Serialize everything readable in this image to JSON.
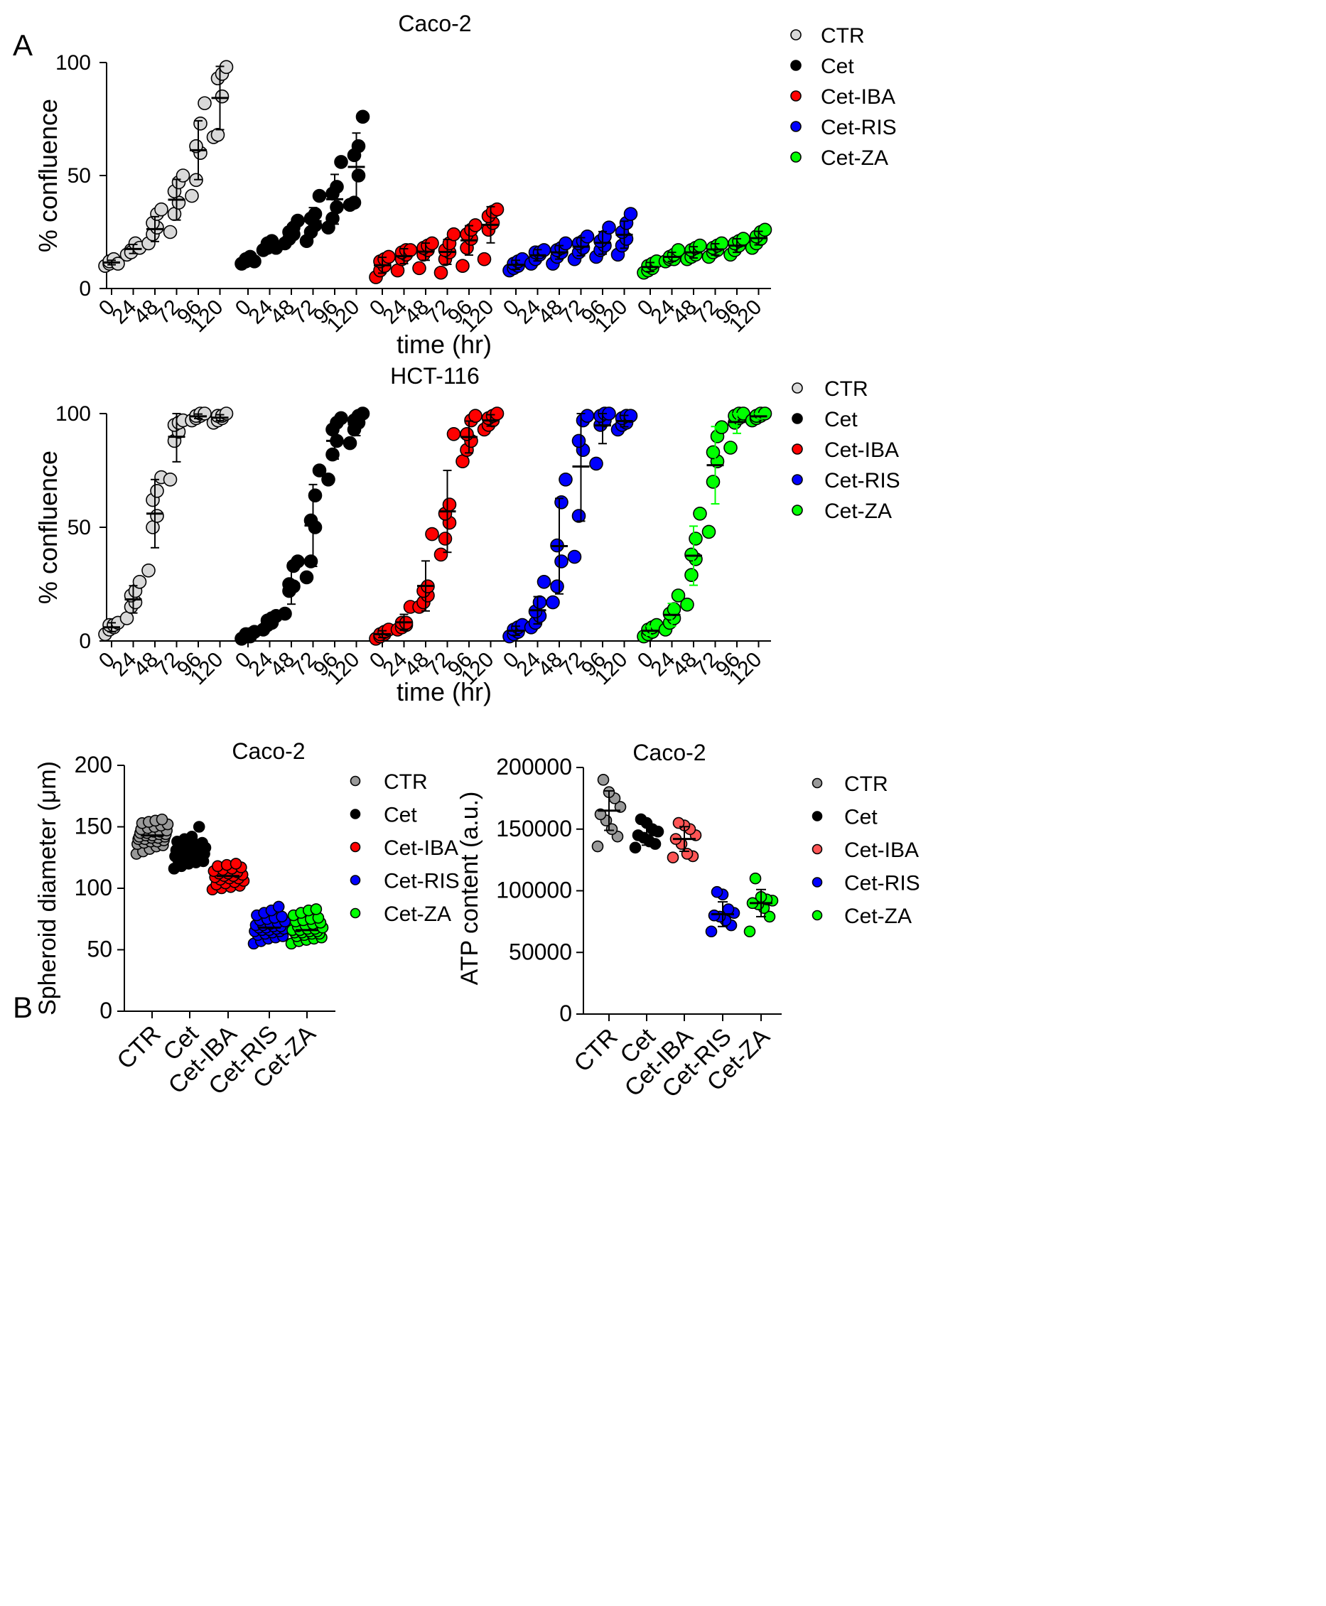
{
  "panel_labels": {
    "a": "A",
    "b": "B"
  },
  "legend": [
    {
      "name": "CTR",
      "color": "#d9d9d9"
    },
    {
      "name": "Cet",
      "color": "#000000"
    },
    {
      "name": "Cet-IBA",
      "color": "#ff0000"
    },
    {
      "name": "Cet-RIS",
      "color": "#0000ff"
    },
    {
      "name": "Cet-ZA",
      "color": "#00ff00"
    }
  ],
  "chart_data": [
    {
      "type": "scatter",
      "title": "Caco-2",
      "xlabel": "time (hr)",
      "ylabel": "% confluence",
      "ylim": [
        0,
        100
      ],
      "yticks": [
        0,
        50,
        100
      ],
      "categories": [
        "0",
        "24",
        "48",
        "72",
        "96",
        "120"
      ],
      "series": [
        {
          "name": "CTR",
          "color": "#d9d9d9",
          "points": [
            [
              10,
              11,
              12,
              12,
              13,
              11
            ],
            [
              15,
              17,
              19,
              16,
              20,
              18
            ],
            [
              20,
              24,
              27,
              29,
              33,
              35
            ],
            [
              25,
              33,
              38,
              43,
              47,
              50
            ],
            [
              41,
              48,
              60,
              63,
              73,
              82
            ],
            [
              67,
              68,
              85,
              93,
              95,
              98
            ]
          ],
          "means": [
            11.5,
            17.5,
            26.3,
            39.3,
            61.2,
            84.3
          ],
          "sd": [
            1,
            2,
            5.5,
            9,
            13,
            14
          ]
        },
        {
          "name": "Cet",
          "color": "#000000",
          "points": [
            [
              11,
              12,
              13,
              13,
              14,
              12
            ],
            [
              17,
              18,
              19,
              20,
              21,
              18
            ],
            [
              20,
              22,
              24,
              25,
              27,
              30
            ],
            [
              21,
              25,
              28,
              31,
              33,
              41
            ],
            [
              27,
              31,
              36,
              42,
              45,
              56
            ],
            [
              37,
              38,
              50,
              59,
              63,
              76
            ]
          ],
          "means": [
            12.5,
            18.8,
            24.7,
            29.8,
            39.5,
            53.8
          ],
          "sd": [
            1,
            1.5,
            3.5,
            6,
            11,
            15
          ]
        },
        {
          "name": "Cet-IBA",
          "color": "#ff0000",
          "points": [
            [
              5,
              8,
              10,
              12,
              13,
              14
            ],
            [
              8,
              13,
              15,
              16,
              17,
              17
            ],
            [
              9,
              15,
              17,
              18,
              19,
              20
            ],
            [
              7,
              13,
              16,
              17,
              20,
              24
            ],
            [
              10,
              18,
              22,
              24,
              26,
              28
            ],
            [
              13,
              26,
              29,
              32,
              34,
              35
            ]
          ],
          "means": [
            10.3,
            14.3,
            16.3,
            16.2,
            21.3,
            28.2
          ],
          "sd": [
            3.5,
            3.3,
            3.8,
            5.5,
            6.5,
            8
          ]
        },
        {
          "name": "Cet-RIS",
          "color": "#0000ff",
          "points": [
            [
              8,
              9,
              10,
              11,
              12,
              13
            ],
            [
              11,
              13,
              15,
              16,
              16,
              17
            ],
            [
              11,
              14,
              16,
              17,
              18,
              20
            ],
            [
              13,
              16,
              18,
              20,
              21,
              23
            ],
            [
              14,
              17,
              19,
              21,
              23,
              27
            ],
            [
              15,
              19,
              22,
              25,
              29,
              33
            ]
          ],
          "means": [
            10.5,
            14.7,
            16,
            18.5,
            20.2,
            23.8
          ],
          "sd": [
            2,
            2.5,
            3,
            4,
            5,
            6
          ]
        },
        {
          "name": "Cet-ZA",
          "color": "#00ff00",
          "points": [
            [
              7,
              8,
              9,
              10,
              11,
              12
            ],
            [
              12,
              13,
              13,
              14,
              15,
              17
            ],
            [
              13,
              14,
              15,
              17,
              18,
              19
            ],
            [
              14,
              16,
              17,
              18,
              19,
              20
            ],
            [
              15,
              17,
              19,
              20,
              21,
              22
            ],
            [
              18,
              20,
              22,
              23,
              25,
              26
            ]
          ],
          "means": [
            9.5,
            14,
            16,
            17.3,
            19,
            22.3
          ],
          "sd": [
            2,
            2,
            2.5,
            2.5,
            3,
            3
          ]
        }
      ]
    },
    {
      "type": "scatter",
      "title": "HCT-116",
      "xlabel": "time (hr)",
      "ylabel": "% confluence",
      "ylim": [
        0,
        100
      ],
      "yticks": [
        0,
        50,
        100
      ],
      "categories": [
        "0",
        "24",
        "48",
        "72",
        "96",
        "120"
      ],
      "series": [
        {
          "name": "CTR",
          "color": "#d9d9d9",
          "points": [
            [
              3,
              5,
              6,
              7,
              7,
              8
            ],
            [
              10,
              15,
              17,
              20,
              22,
              26
            ],
            [
              31,
              50,
              55,
              62,
              66,
              72
            ],
            [
              71,
              88,
              92,
              95,
              96,
              97
            ],
            [
              97,
              98,
              99,
              99,
              100,
              100
            ],
            [
              96,
              97,
              98,
              99,
              99,
              100
            ]
          ],
          "means": [
            6,
            18.3,
            56,
            89.8,
            98.8,
            98.2
          ],
          "sd": [
            2,
            6,
            15,
            11,
            1,
            1.3
          ]
        },
        {
          "name": "Cet",
          "color": "#000000",
          "points": [
            [
              1,
              2,
              2,
              3,
              3,
              4
            ],
            [
              5,
              7,
              8,
              9,
              10,
              11
            ],
            [
              12,
              22,
              24,
              25,
              33,
              35
            ],
            [
              28,
              35,
              50,
              53,
              64,
              75
            ],
            [
              71,
              82,
              88,
              93,
              96,
              98
            ],
            [
              87,
              93,
              96,
              97,
              99,
              100
            ]
          ],
          "means": [
            2.5,
            8.3,
            25.2,
            50.8,
            88,
            95.3
          ],
          "sd": [
            1,
            2,
            9,
            18,
            8,
            5
          ]
        },
        {
          "name": "Cet-IBA",
          "color": "#ff0000",
          "points": [
            [
              1,
              2,
              3,
              3,
              4,
              5
            ],
            [
              5,
              6,
              7,
              8,
              8,
              15
            ],
            [
              15,
              17,
              20,
              22,
              24,
              47
            ],
            [
              38,
              45,
              52,
              56,
              60,
              91
            ],
            [
              79,
              84,
              88,
              91,
              97,
              99
            ],
            [
              93,
              95,
              97,
              98,
              99,
              100
            ]
          ],
          "means": [
            3,
            8.2,
            24.2,
            57,
            89.7,
            97
          ],
          "sd": [
            1.5,
            3.5,
            11,
            18,
            7,
            2.5
          ]
        },
        {
          "name": "Cet-RIS",
          "color": "#0000ff",
          "points": [
            [
              2,
              3,
              4,
              5,
              6,
              7
            ],
            [
              6,
              8,
              11,
              13,
              17,
              26
            ],
            [
              17,
              24,
              35,
              42,
              61,
              71
            ],
            [
              37,
              55,
              84,
              88,
              97,
              99
            ],
            [
              78,
              95,
              97,
              99,
              100,
              100
            ],
            [
              93,
              95,
              96,
              98,
              99,
              99
            ]
          ],
          "means": [
            4.5,
            13.5,
            41.7,
            76.7,
            94.8,
            96.7
          ],
          "sd": [
            2,
            6,
            21,
            24,
            8,
            2.5
          ]
        },
        {
          "name": "Cet-ZA",
          "color": "#00ff00",
          "points": [
            [
              2,
              3,
              4,
              5,
              6,
              7
            ],
            [
              5,
              8,
              10,
              12,
              14,
              20
            ],
            [
              16,
              29,
              36,
              38,
              45,
              56
            ],
            [
              48,
              70,
              79,
              83,
              90,
              94
            ],
            [
              85,
              96,
              98,
              99,
              100,
              100
            ],
            [
              97,
              98,
              99,
              99,
              100,
              100
            ]
          ],
          "means": [
            4.5,
            11.5,
            37.5,
            77.3,
            96.3,
            98.8
          ],
          "sd": [
            2,
            5,
            13,
            17,
            5,
            1.2
          ]
        }
      ]
    },
    {
      "type": "scatter",
      "title": "Caco-2",
      "xlabel": "",
      "ylabel": "Spheroid diameter (μm)",
      "ylim": [
        0,
        200
      ],
      "yticks": [
        0,
        50,
        100,
        150,
        200
      ],
      "categories": [
        "CTR",
        "Cet",
        "Cet-IBA",
        "Cet-RIS",
        "Cet-ZA"
      ],
      "series": [
        {
          "name": "CTR",
          "color": "#999999",
          "points": [
            128,
            130,
            132,
            134,
            135,
            136,
            137,
            138,
            138,
            139,
            140,
            140,
            141,
            141,
            142,
            142,
            143,
            143,
            144,
            144,
            145,
            145,
            146,
            146,
            147,
            148,
            149,
            150,
            151,
            152,
            153,
            154,
            155,
            156
          ],
          "mean": 143
        },
        {
          "name": "Cet",
          "color": "#000000",
          "points": [
            116,
            118,
            120,
            121,
            122,
            123,
            124,
            125,
            125,
            126,
            127,
            127,
            128,
            128,
            129,
            129,
            130,
            130,
            131,
            131,
            132,
            132,
            133,
            134,
            135,
            136,
            137,
            138,
            140,
            142,
            150
          ],
          "mean": 129
        },
        {
          "name": "Cet-IBA",
          "color": "#ff0000",
          "points": [
            99,
            100,
            101,
            102,
            103,
            104,
            105,
            106,
            107,
            108,
            108,
            109,
            110,
            110,
            111,
            112,
            112,
            113,
            114,
            115,
            116,
            117,
            118,
            119,
            120
          ],
          "mean": 110
        },
        {
          "name": "Cet-RIS",
          "color": "#0000ff",
          "points": [
            55,
            57,
            59,
            60,
            61,
            62,
            63,
            64,
            65,
            65,
            66,
            66,
            67,
            67,
            68,
            68,
            69,
            69,
            70,
            70,
            71,
            72,
            73,
            74,
            75,
            76,
            77,
            78,
            80,
            82,
            85
          ],
          "mean": 68
        },
        {
          "name": "Cet-ZA",
          "color": "#00ff00",
          "points": [
            55,
            57,
            58,
            59,
            60,
            61,
            62,
            63,
            63,
            64,
            64,
            65,
            65,
            66,
            66,
            67,
            67,
            68,
            69,
            70,
            71,
            72,
            73,
            74,
            75,
            76,
            78,
            80,
            82,
            83
          ],
          "mean": 66
        }
      ]
    },
    {
      "type": "scatter",
      "title": "Caco-2",
      "xlabel": "",
      "ylabel": "ATP content (a.u.)",
      "ylim": [
        0,
        200000
      ],
      "yticks": [
        0,
        50000,
        100000,
        150000,
        200000
      ],
      "categories": [
        "CTR",
        "Cet",
        "Cet-IBA",
        "Cet-RIS",
        "Cet-ZA"
      ],
      "series": [
        {
          "name": "CTR",
          "color": "#999999",
          "points": [
            136000,
            144000,
            150000,
            157000,
            162000,
            168000,
            175000,
            180000,
            190000
          ],
          "mean": 165000,
          "sd": 16000
        },
        {
          "name": "Cet",
          "color": "#000000",
          "points": [
            135000,
            138000,
            140000,
            143000,
            145000,
            148000,
            150000,
            155000,
            158000
          ],
          "mean": 145000,
          "sd": 8000
        },
        {
          "name": "Cet-IBA",
          "color": "#ff5555",
          "points": [
            127000,
            128000,
            130000,
            138000,
            142000,
            145000,
            150000,
            153000,
            155000
          ],
          "mean": 142000,
          "sd": 10000
        },
        {
          "name": "Cet-RIS",
          "color": "#0000ff",
          "points": [
            67000,
            72000,
            76000,
            79000,
            80000,
            82000,
            85000,
            97000,
            99000
          ],
          "mean": 81000,
          "sd": 10000
        },
        {
          "name": "Cet-ZA",
          "color": "#00ff00",
          "points": [
            67000,
            79000,
            86000,
            89000,
            90000,
            92000,
            93000,
            95000,
            110000
          ],
          "mean": 90000,
          "sd": 11000
        }
      ]
    }
  ]
}
